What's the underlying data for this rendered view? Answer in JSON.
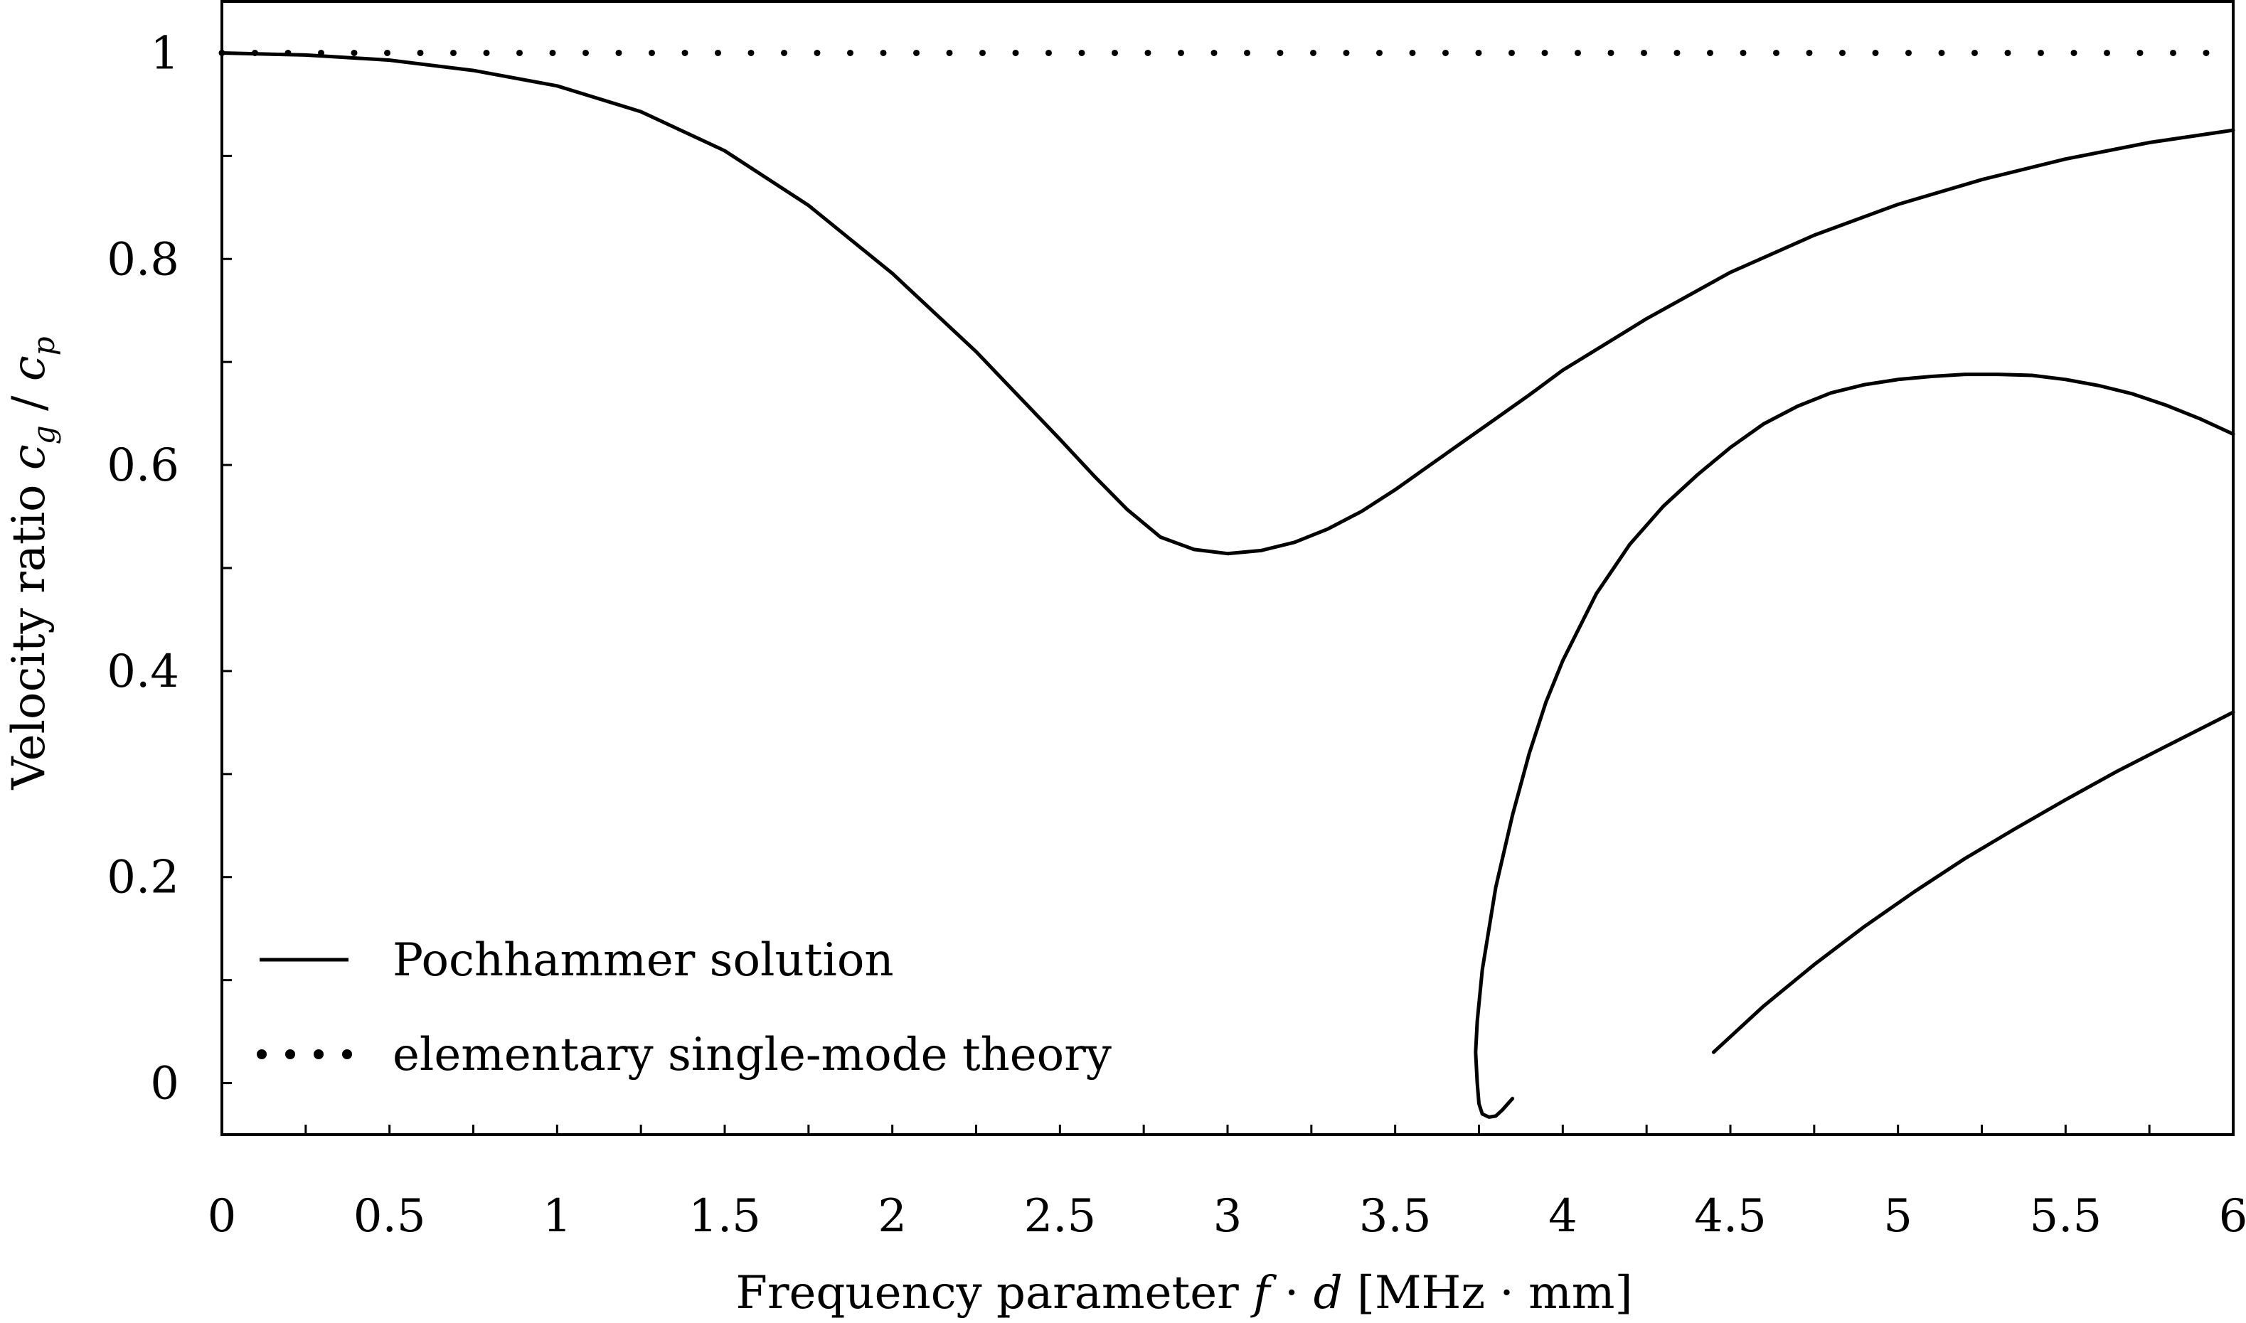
{
  "chart_data": {
    "type": "line",
    "title": "",
    "xlabel": "Frequency parameter f · d [MHz · mm]",
    "xlabel_parts": {
      "prefix": "Frequency parameter ",
      "f": "f",
      "dot": " · ",
      "d": "d",
      "suffix": " [MHz · mm]"
    },
    "ylabel": "Velocity ratio c_g / c_p",
    "ylabel_parts": {
      "prefix": "Velocity ratio ",
      "c1": "c",
      "sub1": "g",
      "slash": " / ",
      "c2": "c",
      "sub2": "p"
    },
    "xlim": [
      0,
      6
    ],
    "ylim": [
      -0.05,
      1.05
    ],
    "x_ticks": [
      0,
      0.5,
      1,
      1.5,
      2,
      2.5,
      3,
      3.5,
      4,
      4.5,
      5,
      5.5,
      6
    ],
    "x_tick_labels": [
      "0",
      "0.5",
      "1",
      "1.5",
      "2",
      "2.5",
      "3",
      "3.5",
      "4",
      "4.5",
      "5",
      "5.5",
      "6"
    ],
    "y_ticks": [
      0,
      0.2,
      0.4,
      0.6,
      0.8,
      1
    ],
    "y_tick_labels": [
      "0",
      "0.2",
      "0.4",
      "0.6",
      "0.8",
      "1"
    ],
    "grid": false,
    "legend_position": "bottom-left",
    "series": [
      {
        "name": "Pochhammer solution",
        "style": "solid",
        "color": "#000000",
        "segments": [
          {
            "x": [
              0,
              0.25,
              0.5,
              0.75,
              1.0,
              1.25,
              1.5,
              1.75,
              2.0,
              2.25,
              2.5,
              2.6,
              2.7,
              2.8,
              2.9,
              3.0,
              3.1,
              3.2,
              3.3,
              3.4,
              3.5,
              3.6,
              3.7,
              3.8,
              3.9,
              4.0,
              4.25,
              4.5,
              4.75,
              5.0,
              5.25,
              5.5,
              5.75,
              6.0
            ],
            "y": [
              1.0,
              0.998,
              0.993,
              0.983,
              0.968,
              0.943,
              0.905,
              0.852,
              0.786,
              0.71,
              0.625,
              0.59,
              0.557,
              0.53,
              0.518,
              0.514,
              0.517,
              0.525,
              0.538,
              0.555,
              0.576,
              0.599,
              0.622,
              0.645,
              0.668,
              0.692,
              0.742,
              0.787,
              0.823,
              0.853,
              0.877,
              0.897,
              0.913,
              0.925
            ]
          },
          {
            "x": [
              3.85,
              3.82,
              3.8,
              3.78,
              3.76,
              3.75,
              3.745,
              3.74,
              3.745,
              3.76,
              3.8,
              3.85,
              3.9,
              3.95,
              4.0,
              4.1,
              4.2,
              4.3,
              4.4,
              4.5,
              4.6,
              4.7,
              4.8,
              4.9,
              5.0,
              5.1,
              5.2,
              5.3,
              5.4,
              5.5,
              5.6,
              5.7,
              5.8,
              5.9,
              6.0
            ],
            "y": [
              -0.015,
              -0.026,
              -0.032,
              -0.033,
              -0.03,
              -0.02,
              0.0,
              0.03,
              0.06,
              0.11,
              0.19,
              0.26,
              0.32,
              0.37,
              0.41,
              0.475,
              0.523,
              0.56,
              0.59,
              0.617,
              0.64,
              0.657,
              0.67,
              0.678,
              0.683,
              0.686,
              0.688,
              0.688,
              0.687,
              0.683,
              0.677,
              0.669,
              0.658,
              0.645,
              0.63
            ]
          },
          {
            "x": [
              4.45,
              4.6,
              4.75,
              4.9,
              5.05,
              5.2,
              5.35,
              5.5,
              5.65,
              5.8,
              6.0
            ],
            "y": [
              0.03,
              0.075,
              0.115,
              0.152,
              0.186,
              0.218,
              0.247,
              0.275,
              0.302,
              0.327,
              0.36
            ]
          }
        ]
      },
      {
        "name": "elementary single-mode theory",
        "style": "dotted",
        "color": "#000000",
        "x": [
          0,
          6
        ],
        "y": [
          1,
          1
        ]
      }
    ]
  }
}
